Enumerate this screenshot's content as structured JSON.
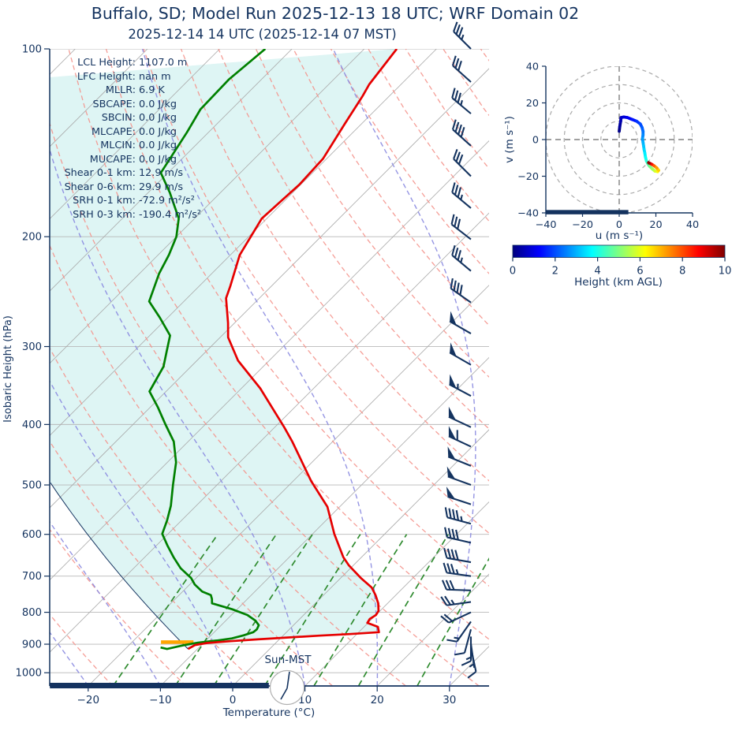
{
  "title": "Buffalo, SD; Model Run 2025-12-13 18 UTC; WRF Domain 02",
  "subtitle": "2025-12-14 14 UTC  (2025-12-14 07 MST)",
  "colors": {
    "text_navy": "#14335f",
    "temperature_line": "#e60000",
    "dewpoint_line": "#008000",
    "fill_cyan": "#def5f4",
    "dry_adiabat": "#f4948c",
    "moist_adiabat": "#8a8ae0",
    "mixing_ratio": "#2f8b2f",
    "isotherm": "#a9a9a9",
    "grid": "#b8b8b8",
    "lcl_marker": "#ffa500"
  },
  "chart_data": [
    {
      "type": "line",
      "name": "skewt_sounding",
      "xlabel": "Temperature (°C)",
      "ylabel": "Isobaric Height (hPa)",
      "sun_label": "Sun-MST",
      "clock": {
        "time": "07:00"
      },
      "xlim": [
        -25,
        35
      ],
      "pressure_lim": [
        100,
        1050
      ],
      "pressure_ticks": [
        100,
        200,
        300,
        400,
        500,
        600,
        700,
        800,
        900,
        1000
      ],
      "temp_ticks": [
        -20,
        -10,
        0,
        10,
        20,
        30
      ],
      "stats": [
        {
          "label": "LCL Height:",
          "value": "1107.0 m"
        },
        {
          "label": "LFC Height:",
          "value": "nan m"
        },
        {
          "label": "MLLR:",
          "value": "6.9 K"
        },
        {
          "label": "SBCAPE:",
          "value": "0.0 J/kg"
        },
        {
          "label": "SBCIN:",
          "value": "0.0 J/kg"
        },
        {
          "label": "MLCAPE:",
          "value": "0.0 J/kg"
        },
        {
          "label": "MLCIN:",
          "value": "0.0 J/kg"
        },
        {
          "label": "MUCAPE:",
          "value": "0.0 J/kg"
        },
        {
          "label": "Shear 0-1 km:",
          "value": "12.9 m/s"
        },
        {
          "label": "Shear 0-6 km:",
          "value": "29.9 m/s"
        },
        {
          "label": "SRH 0-1 km:",
          "value": "-72.9 m²/s²"
        },
        {
          "label": "SRH 0-3 km:",
          "value": "-190.4 m²/s²"
        }
      ],
      "temperature_profile": [
        [
          100,
          -65.5
        ],
        [
          114,
          -64.4
        ],
        [
          119,
          -63.7
        ],
        [
          132,
          -62.3
        ],
        [
          150,
          -60.5
        ],
        [
          165,
          -60.2
        ],
        [
          187,
          -60.7
        ],
        [
          214,
          -58.7
        ],
        [
          240,
          -55.7
        ],
        [
          251,
          -54.6
        ],
        [
          275,
          -50.9
        ],
        [
          290,
          -48.9
        ],
        [
          316,
          -44.3
        ],
        [
          350,
          -37.4
        ],
        [
          404,
          -28.7
        ],
        [
          426,
          -25.6
        ],
        [
          493,
          -17.5
        ],
        [
          542,
          -11.7
        ],
        [
          599,
          -7.0
        ],
        [
          653,
          -2.5
        ],
        [
          673,
          -0.6
        ],
        [
          705,
          2.8
        ],
        [
          730,
          5.6
        ],
        [
          751,
          7.2
        ],
        [
          774,
          8.7
        ],
        [
          796,
          9.8
        ],
        [
          808,
          10.0
        ],
        [
          820,
          9.7
        ],
        [
          832,
          9.9
        ],
        [
          844,
          11.9
        ],
        [
          861,
          12.8
        ],
        [
          867,
          9.0
        ],
        [
          872,
          5.0
        ],
        [
          878,
          1.0
        ],
        [
          884,
          -3.0
        ],
        [
          890,
          -6.5
        ],
        [
          896,
          -9.5
        ],
        [
          903,
          -10.9
        ],
        [
          916,
          -11.3
        ]
      ],
      "dewpoint_profile": [
        [
          100,
          -83.7
        ],
        [
          112,
          -84.5
        ],
        [
          125,
          -84.3
        ],
        [
          136,
          -83.0
        ],
        [
          158,
          -81.0
        ],
        [
          170,
          -77.0
        ],
        [
          187,
          -72.2
        ],
        [
          200,
          -70.0
        ],
        [
          214,
          -68.5
        ],
        [
          229,
          -67.3
        ],
        [
          254,
          -64.8
        ],
        [
          270,
          -61.0
        ],
        [
          288,
          -57.2
        ],
        [
          305,
          -55.5
        ],
        [
          323,
          -53.8
        ],
        [
          354,
          -52.3
        ],
        [
          375,
          -49.0
        ],
        [
          400,
          -45.5
        ],
        [
          426,
          -42.0
        ],
        [
          460,
          -38.8
        ],
        [
          500,
          -36.1
        ],
        [
          540,
          -33.5
        ],
        [
          570,
          -32.0
        ],
        [
          599,
          -30.8
        ],
        [
          625,
          -28.5
        ],
        [
          653,
          -26.0
        ],
        [
          680,
          -23.5
        ],
        [
          705,
          -20.7
        ],
        [
          722,
          -19.3
        ],
        [
          741,
          -17.3
        ],
        [
          751,
          -15.6
        ],
        [
          762,
          -14.9
        ],
        [
          774,
          -14.3
        ],
        [
          791,
          -10.7
        ],
        [
          808,
          -7.8
        ],
        [
          825,
          -5.9
        ],
        [
          839,
          -4.8
        ],
        [
          852,
          -4.5
        ],
        [
          861,
          -4.6
        ],
        [
          871,
          -5.5
        ],
        [
          881,
          -6.7
        ],
        [
          888,
          -8.5
        ],
        [
          895,
          -10.8
        ],
        [
          902,
          -12.2
        ],
        [
          908,
          -13.1
        ],
        [
          916,
          -14.2
        ],
        [
          911,
          -15.3
        ]
      ],
      "parcel_profile": {
        "surface_pressure": 916,
        "surface_temp": -11.3,
        "top_pressure": 480
      },
      "lcl_marker": {
        "pressure": 893,
        "t_min": -16.0,
        "t_max": -11.5
      },
      "night_bar": {
        "t_start": -25.3,
        "t_end": 5.0
      },
      "background": {
        "isotherms": {
          "start": -110,
          "end": 40,
          "step": 10
        },
        "dry_adiabats_theta_K": {
          "start": 253,
          "end": 453,
          "step": 10
        },
        "moist_adiabats_t0_C": {
          "start": -60,
          "end": 40,
          "step": 10
        },
        "mixing_ratios_g_kg": [
          1,
          2,
          3,
          5,
          8,
          12,
          20
        ]
      },
      "wind_barbs": [
        {
          "p": 100,
          "dir": 315,
          "pennants": 0,
          "fulls": 3,
          "halfs": 1
        },
        {
          "p": 113,
          "dir": 312,
          "pennants": 0,
          "fulls": 3,
          "halfs": 0
        },
        {
          "p": 127,
          "dir": 310,
          "pennants": 0,
          "fulls": 3,
          "halfs": 1
        },
        {
          "p": 143,
          "dir": 312,
          "pennants": 0,
          "fulls": 4,
          "halfs": 0
        },
        {
          "p": 160,
          "dir": 315,
          "pennants": 0,
          "fulls": 3,
          "halfs": 0
        },
        {
          "p": 180,
          "dir": 310,
          "pennants": 0,
          "fulls": 3,
          "halfs": 1
        },
        {
          "p": 202,
          "dir": 308,
          "pennants": 0,
          "fulls": 3,
          "halfs": 0
        },
        {
          "p": 227,
          "dir": 310,
          "pennants": 0,
          "fulls": 3,
          "halfs": 1
        },
        {
          "p": 255,
          "dir": 305,
          "pennants": 0,
          "fulls": 4,
          "halfs": 0
        },
        {
          "p": 286,
          "dir": 300,
          "pennants": 1,
          "fulls": 0,
          "halfs": 0
        },
        {
          "p": 321,
          "dir": 300,
          "pennants": 1,
          "fulls": 0,
          "halfs": 0
        },
        {
          "p": 360,
          "dir": 298,
          "pennants": 1,
          "fulls": 0,
          "halfs": 1
        },
        {
          "p": 404,
          "dir": 295,
          "pennants": 1,
          "fulls": 0,
          "halfs": 0
        },
        {
          "p": 434,
          "dir": 295,
          "pennants": 1,
          "fulls": 1,
          "halfs": 0
        },
        {
          "p": 466,
          "dir": 292,
          "pennants": 1,
          "fulls": 0,
          "halfs": 0
        },
        {
          "p": 500,
          "dir": 290,
          "pennants": 1,
          "fulls": 0,
          "halfs": 0
        },
        {
          "p": 537,
          "dir": 288,
          "pennants": 1,
          "fulls": 0,
          "halfs": 0
        },
        {
          "p": 577,
          "dir": 285,
          "pennants": 0,
          "fulls": 4,
          "halfs": 1
        },
        {
          "p": 619,
          "dir": 283,
          "pennants": 0,
          "fulls": 4,
          "halfs": 0
        },
        {
          "p": 665,
          "dir": 280,
          "pennants": 0,
          "fulls": 4,
          "halfs": 0
        },
        {
          "p": 700,
          "dir": 278,
          "pennants": 0,
          "fulls": 3,
          "halfs": 1
        },
        {
          "p": 738,
          "dir": 272,
          "pennants": 0,
          "fulls": 3,
          "halfs": 0
        },
        {
          "p": 770,
          "dir": 262,
          "pennants": 0,
          "fulls": 2,
          "halfs": 1
        },
        {
          "p": 800,
          "dir": 245,
          "pennants": 0,
          "fulls": 2,
          "halfs": 0
        },
        {
          "p": 828,
          "dir": 215,
          "pennants": 0,
          "fulls": 1,
          "halfs": 1
        },
        {
          "p": 852,
          "dir": 195,
          "pennants": 0,
          "fulls": 1,
          "halfs": 0
        },
        {
          "p": 875,
          "dir": 180,
          "pennants": 0,
          "fulls": 1,
          "halfs": 1
        },
        {
          "p": 898,
          "dir": 172,
          "pennants": 0,
          "fulls": 0,
          "halfs": 1
        },
        {
          "p": 912,
          "dir": 168,
          "pennants": 0,
          "fulls": 1,
          "halfs": 0
        }
      ]
    },
    {
      "type": "line",
      "name": "hodograph",
      "xlabel": "u (m s⁻¹)",
      "ylabel": "v (m s⁻¹)",
      "xlim": [
        -40,
        40
      ],
      "ylim": [
        -40,
        40
      ],
      "ticks": [
        -40,
        -20,
        0,
        20,
        40
      ],
      "rings": [
        10,
        20,
        30,
        40
      ],
      "baseline_bar": {
        "u_start": -41,
        "u_end": 5,
        "v": -39.5
      },
      "trace": [
        {
          "u": 0.0,
          "v": 4.5,
          "h": 0.0
        },
        {
          "u": 0.3,
          "v": 7.0,
          "h": 0.2
        },
        {
          "u": 0.8,
          "v": 10.0,
          "h": 0.4
        },
        {
          "u": 1.0,
          "v": 12.0,
          "h": 0.6
        },
        {
          "u": 2.5,
          "v": 12.3,
          "h": 0.8
        },
        {
          "u": 4.5,
          "v": 12.0,
          "h": 1.0
        },
        {
          "u": 7.0,
          "v": 11.0,
          "h": 1.3
        },
        {
          "u": 9.5,
          "v": 10.0,
          "h": 1.6
        },
        {
          "u": 11.5,
          "v": 8.5,
          "h": 1.9
        },
        {
          "u": 12.5,
          "v": 6.5,
          "h": 2.1
        },
        {
          "u": 13.0,
          "v": 4.5,
          "h": 2.3
        },
        {
          "u": 13.0,
          "v": 2.5,
          "h": 2.5
        },
        {
          "u": 12.7,
          "v": 0.5,
          "h": 2.7
        },
        {
          "u": 13.0,
          "v": -1.5,
          "h": 2.9
        },
        {
          "u": 13.3,
          "v": -3.5,
          "h": 3.1
        },
        {
          "u": 13.6,
          "v": -5.5,
          "h": 3.3
        },
        {
          "u": 14.0,
          "v": -7.5,
          "h": 3.5
        },
        {
          "u": 14.3,
          "v": -9.5,
          "h": 3.7
        },
        {
          "u": 14.8,
          "v": -11.5,
          "h": 4.0
        },
        {
          "u": 15.5,
          "v": -13.0,
          "h": 4.3
        },
        {
          "u": 16.5,
          "v": -14.5,
          "h": 4.7
        },
        {
          "u": 18.0,
          "v": -16.0,
          "h": 5.1
        },
        {
          "u": 19.5,
          "v": -17.2,
          "h": 5.6
        },
        {
          "u": 21.0,
          "v": -17.5,
          "h": 6.1
        },
        {
          "u": 21.5,
          "v": -16.8,
          "h": 6.5
        },
        {
          "u": 20.5,
          "v": -15.5,
          "h": 7.0
        },
        {
          "u": 19.0,
          "v": -14.3,
          "h": 7.5
        },
        {
          "u": 17.8,
          "v": -13.5,
          "h": 8.2
        },
        {
          "u": 16.8,
          "v": -13.0,
          "h": 9.0
        },
        {
          "u": 16.2,
          "v": -12.8,
          "h": 9.6
        },
        {
          "u": 16.0,
          "v": -12.6,
          "h": 10.0
        }
      ]
    },
    {
      "type": "colorbar",
      "name": "height_colorbar",
      "label": "Height (km AGL)",
      "ticks": [
        0,
        2,
        4,
        6,
        8,
        10
      ],
      "range": [
        0,
        10
      ],
      "colormap": "jet"
    }
  ]
}
